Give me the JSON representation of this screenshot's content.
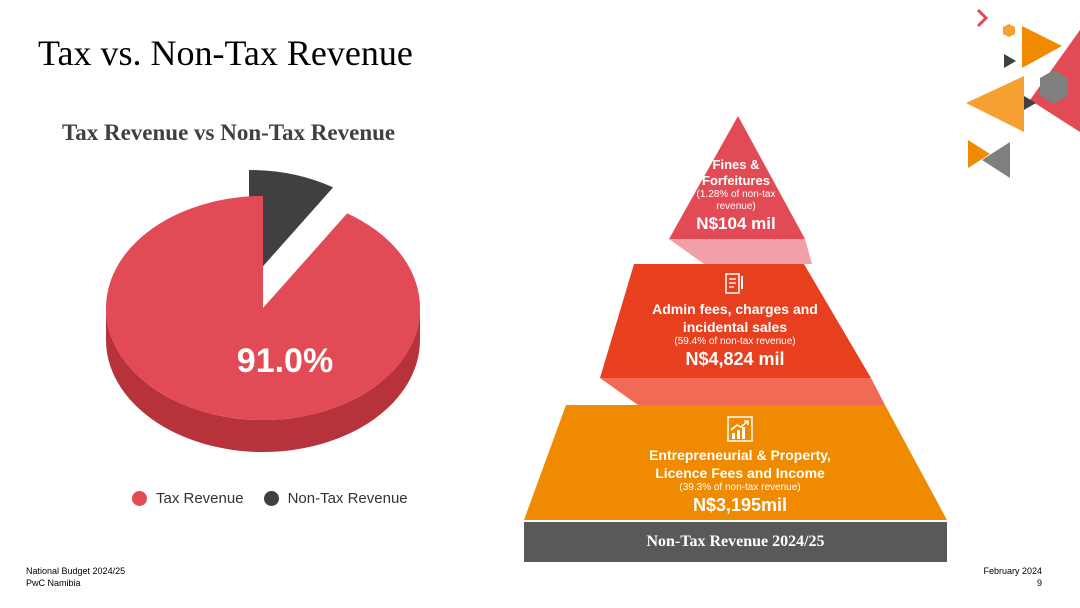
{
  "slide": {
    "title": "Tax vs. Non-Tax Revenue",
    "footer_left_1": "National Budget 2024/25",
    "footer_left_2": "PwC Namibia",
    "footer_right_1": "February 2024",
    "footer_right_2": "9"
  },
  "chart_data": [
    {
      "type": "pie",
      "title": "Tax Revenue vs Non-Tax Revenue",
      "categories": [
        "Tax Revenue",
        "Non-Tax Revenue"
      ],
      "values": [
        91.0,
        9.0
      ],
      "data_labels": [
        "91.0%",
        ""
      ],
      "colors": [
        "#e24a55",
        "#404040"
      ],
      "exploded": "Non-Tax Revenue",
      "legend_position": "bottom"
    },
    {
      "type": "table",
      "title": "Non-Tax Revenue 2024/25",
      "rows": [
        {
          "name": "Fines & Forfeitures",
          "share_text": "(1.28% of non-tax revenue)",
          "share_pct": 1.28,
          "value_text": "N$104 mil",
          "value": 104,
          "color": "#e24a55"
        },
        {
          "name": "Admin fees, charges and incidental sales",
          "share_text": "(59.4% of non-tax revenue)",
          "share_pct": 59.4,
          "value_text": "N$4,824 mil",
          "value": 4824,
          "color": "#e8401f"
        },
        {
          "name": "Entrepreneurial & Property, Licence Fees and Income",
          "share_text": "(39.3% of non-tax revenue)",
          "share_pct": 39.3,
          "value_text": "N$3,195mil",
          "value": 3195,
          "color": "#f08a00"
        }
      ]
    }
  ],
  "pyramid": {
    "tier1_name": "Fines & Forfeitures",
    "tier1_share": "(1.28% of non-tax revenue)",
    "tier1_value": "N$104 mil",
    "tier2_name": "Admin fees, charges and incidental sales",
    "tier2_share": "(59.4% of non-tax revenue)",
    "tier2_value": "N$4,824 mil",
    "tier3_name": "Entrepreneurial & Property, Licence Fees and Income",
    "tier3_share": "(39.3% of non-tax revenue)",
    "tier3_value": "N$3,195mil",
    "base_label": "Non-Tax Revenue 2024/25",
    "icons": [
      "document-icon",
      "growth-chart-icon"
    ]
  },
  "colors": {
    "tax": "#e24a55",
    "tax_side": "#b8323c",
    "non_tax": "#404040",
    "non_tax_side": "#2a2a2a",
    "tier1": "#e24a55",
    "tier2": "#e8401f",
    "tier3": "#f08a00",
    "connector1": "#f0a0a6",
    "connector2": "#f26a55",
    "base": "#595959"
  }
}
